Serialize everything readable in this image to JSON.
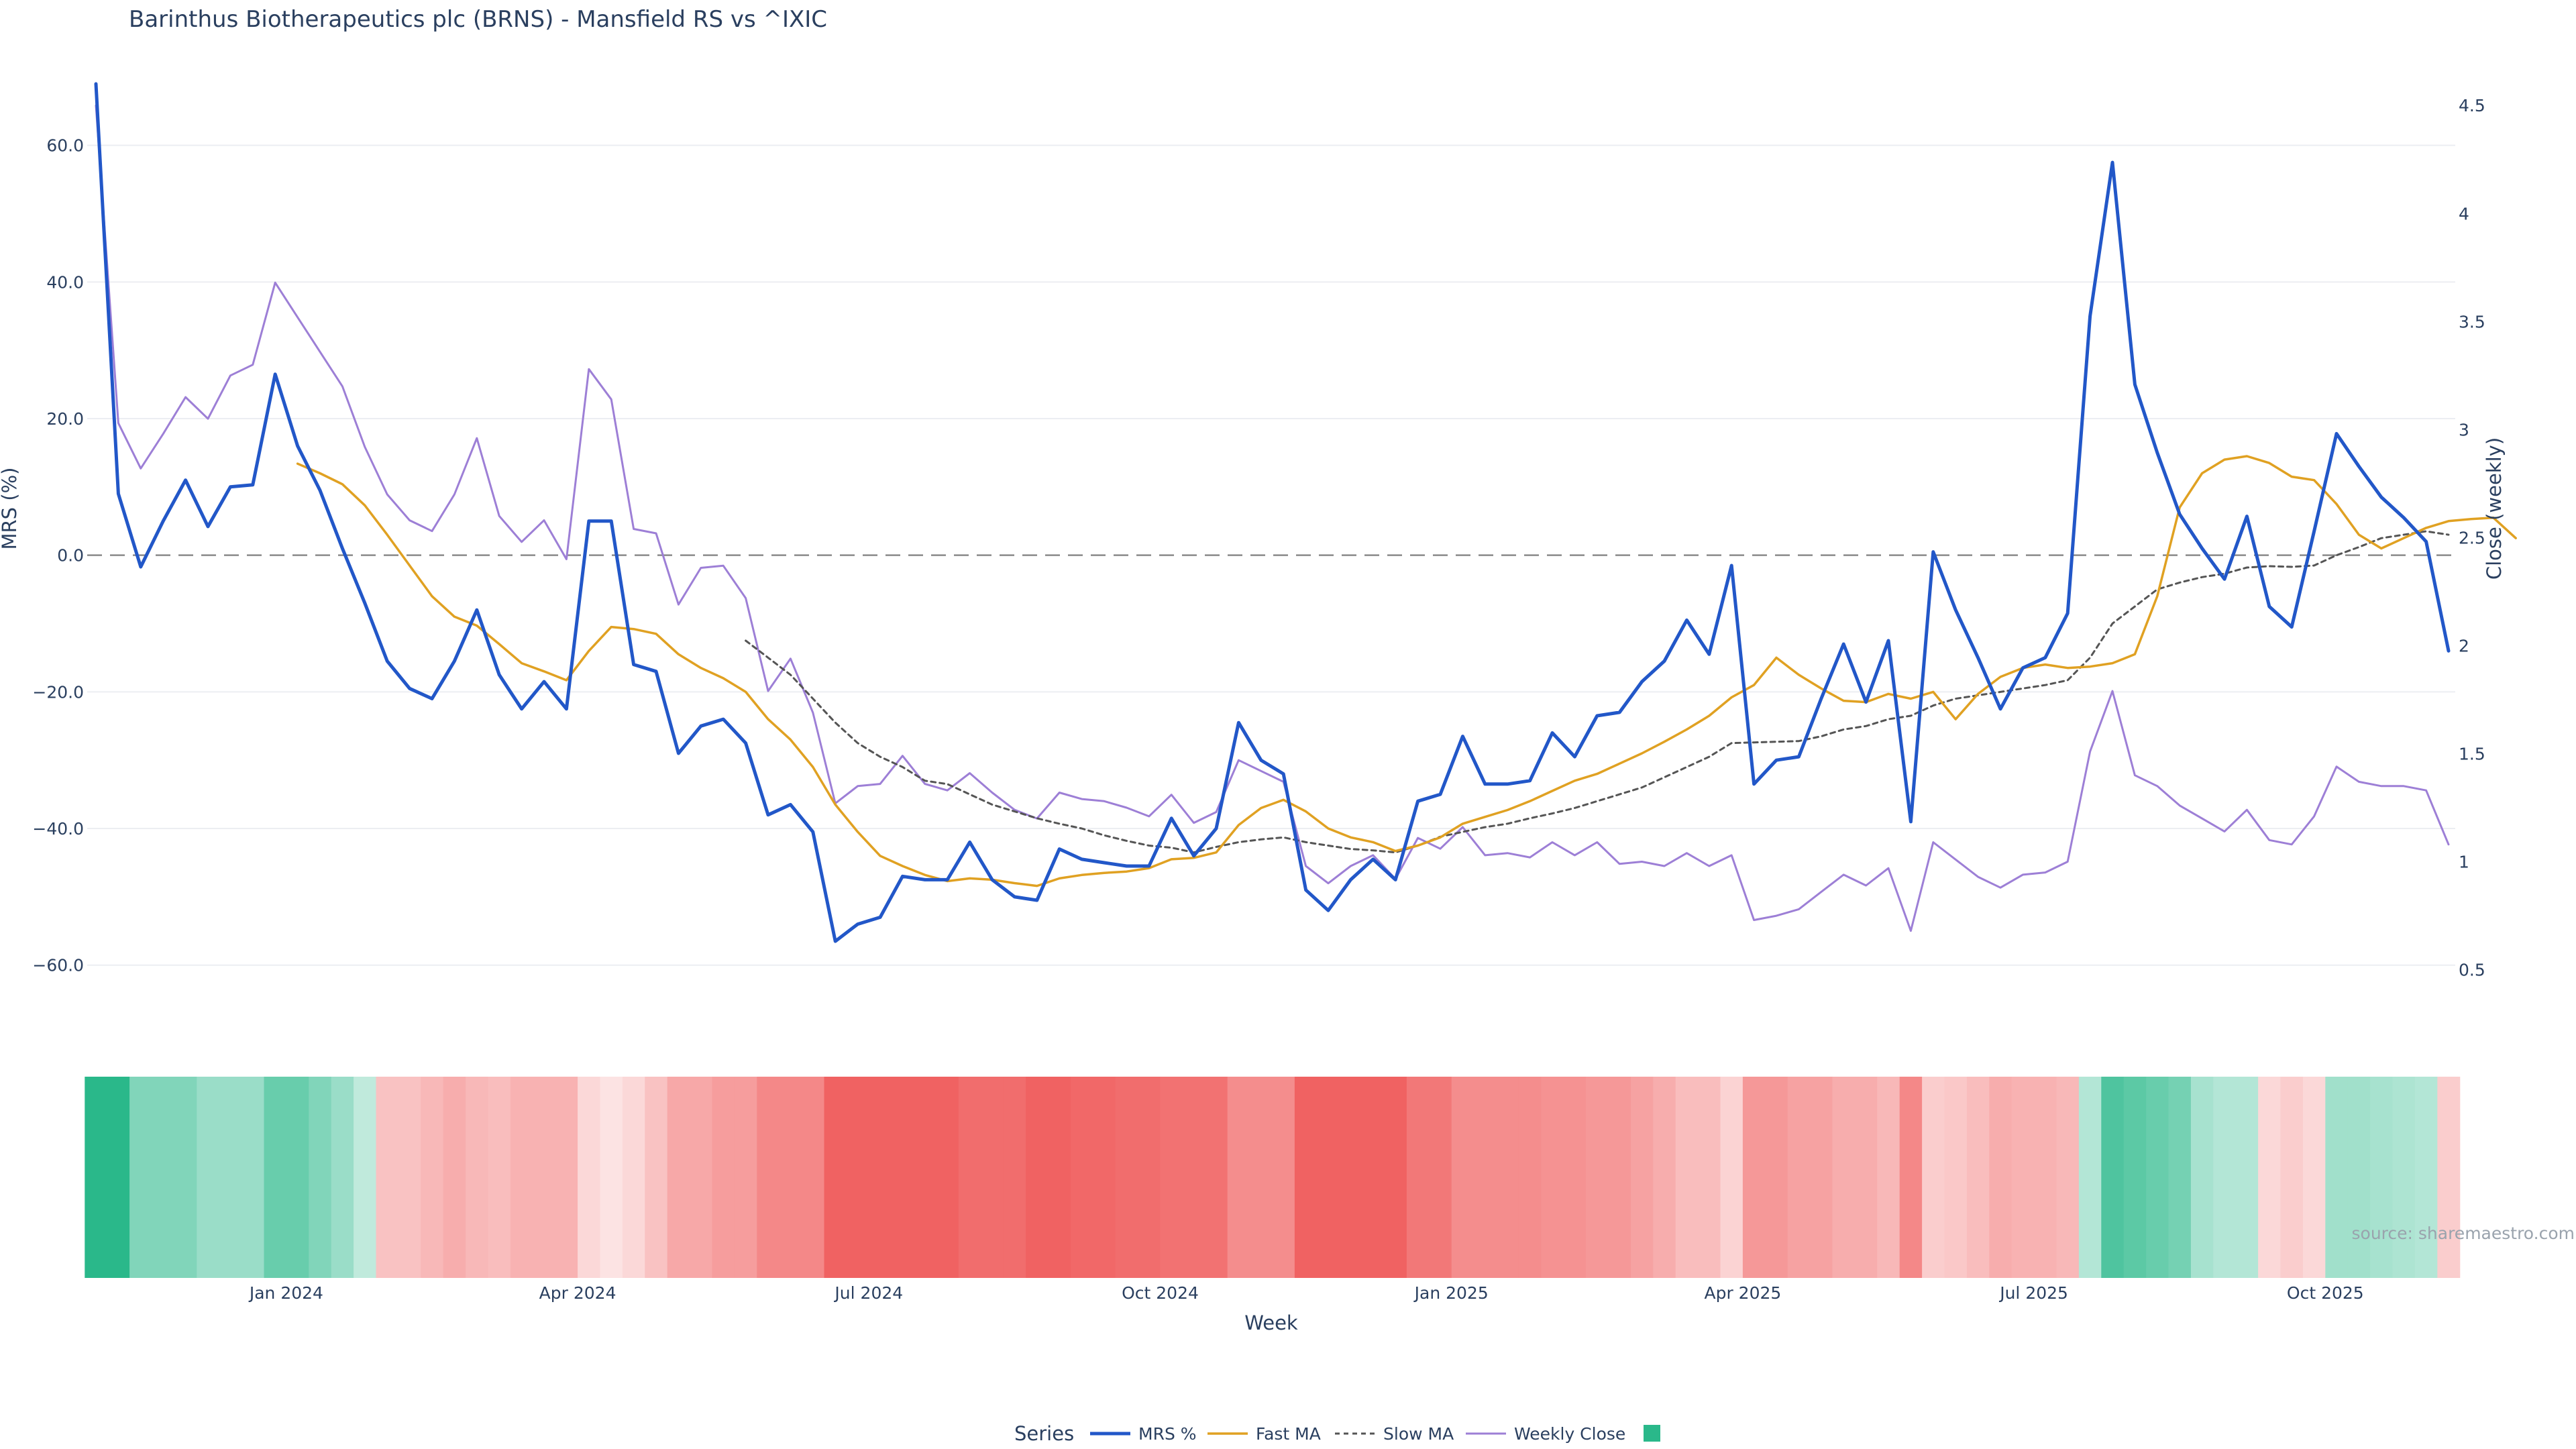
{
  "title": "Barinthus Biotherapeutics plc (BRNS) - Mansfield RS vs ^IXIC",
  "source": "source: sharemaestro.com",
  "colors": {
    "mrs": "#2257c8",
    "fast": "#e0a122",
    "slow": "#555555",
    "close": "#9d7fd6",
    "pos": "#2ab88a",
    "neg": "#ee4d4d",
    "grid": "#eceef2",
    "zero": "#8a8a8a"
  },
  "chart_data": {
    "type": "line",
    "title": "Barinthus Biotherapeutics plc (BRNS) - Mansfield RS vs ^IXIC",
    "xlabel": "Week",
    "ylabel": "MRS (%)",
    "y2label": "Close (weekly)",
    "ylim": [
      -67,
      69
    ],
    "y2lim": [
      0.3,
      4.6
    ],
    "y_ticks": [
      "60.0",
      "40.0",
      "20.0",
      "0.0",
      "−20.0",
      "−40.0",
      "−60.0"
    ],
    "y_tick_values": [
      60,
      40,
      20,
      0,
      -20,
      -40,
      -60
    ],
    "y2_ticks": [
      "4.5",
      "4",
      "3.5",
      "3",
      "2.5",
      "2",
      "1.5",
      "1",
      "0.5"
    ],
    "y2_tick_values": [
      4.5,
      4,
      3.5,
      3,
      2.5,
      2,
      1.5,
      1,
      0.5
    ],
    "x_ticks": [
      "Jan 2024",
      "Apr 2024",
      "Jul 2024",
      "Oct 2024",
      "Jan 2025",
      "Apr 2025",
      "Jul 2025",
      "Oct 2025"
    ],
    "x_tick_values": [
      8.5,
      21.5,
      34.5,
      47.5,
      60.5,
      73.5,
      86.5,
      99.5
    ],
    "grid": true,
    "zero_line": "dashed",
    "legend_title": "Series",
    "legend_position": "bottom-center",
    "series": [
      {
        "name": "MRS %",
        "axis": "y",
        "x_start": 0,
        "values": [
          69,
          9,
          -1.7,
          5,
          11,
          4.2,
          10,
          10.3,
          26.5,
          16,
          9.5,
          1,
          -7,
          -15.5,
          -19.5,
          -21,
          -15.5,
          -8,
          -17.5,
          -22.5,
          -18.5,
          -22.5,
          5,
          5,
          -16,
          -17,
          -29,
          -25,
          -24,
          -27.5,
          -38,
          -36.5,
          -40.5,
          -56.5,
          -54,
          -53,
          -47,
          -47.5,
          -47.5,
          -42,
          -47.5,
          -50,
          -50.5,
          -43,
          -44.5,
          -45,
          -45.5,
          -45.5,
          -38.5,
          -44,
          -40,
          -24.5,
          -30,
          -32,
          -49,
          -52,
          -47.5,
          -44.5,
          -47.5,
          -36,
          -35,
          -26.5,
          -33.5,
          -33.5,
          -33,
          -26,
          -29.5,
          -23.5,
          -23,
          -18.5,
          -15.5,
          -9.5,
          -14.5,
          -1.5,
          -33.5,
          -30,
          -29.5,
          -21,
          -13,
          -21.5,
          -12.5,
          -39,
          0.5,
          -8,
          -15,
          -22.5,
          -16.5,
          -15,
          -8.5,
          35,
          57.5,
          25,
          15,
          6,
          1,
          -3.5,
          5.7,
          -7.5,
          -10.5,
          3.5,
          17.8,
          13,
          8.5,
          5.5,
          2,
          -14
        ]
      },
      {
        "name": "Fast MA",
        "axis": "y",
        "x_start": 9,
        "values": [
          13.4,
          12,
          10.4,
          7.3,
          3,
          -1.5,
          -6,
          -9,
          -10.3,
          -13,
          -15.8,
          -17,
          -18.3,
          -14,
          -10.5,
          -10.8,
          -11.5,
          -14.5,
          -16.5,
          -18,
          -20,
          -24,
          -27,
          -31,
          -36.5,
          -40.5,
          -44,
          -45.5,
          -46.8,
          -47.7,
          -47.3,
          -47.5,
          -48,
          -48.4,
          -47.3,
          -46.8,
          -46.5,
          -46.3,
          -45.8,
          -44.5,
          -44.3,
          -43.5,
          -39.5,
          -37,
          -35.8,
          -37.5,
          -40,
          -41.3,
          -42,
          -43.3,
          -42.5,
          -41.3,
          -39.3,
          -38.3,
          -37.3,
          -36,
          -34.5,
          -33,
          -32,
          -30.5,
          -29,
          -27.3,
          -25.5,
          -23.5,
          -20.8,
          -19,
          -15,
          -17.5,
          -19.5,
          -21.3,
          -21.5,
          -20.3,
          -21,
          -20,
          -24,
          -20.3,
          -17.8,
          -16.5,
          -16,
          -16.5,
          -16.3,
          -15.8,
          -14.5,
          -6,
          7,
          12,
          14,
          14.5,
          13.5,
          11.5,
          11,
          7.5,
          3,
          1,
          2.5,
          4,
          5,
          5.3,
          5.5,
          2.5
        ]
      },
      {
        "name": "Slow MA",
        "axis": "y",
        "x_start": 29,
        "values": [
          -12.5,
          -15,
          -17.5,
          -21,
          -24.5,
          -27.5,
          -29.5,
          -31,
          -33,
          -33.5,
          -35,
          -36.5,
          -37.5,
          -38.5,
          -39.3,
          -40,
          -41,
          -41.8,
          -42.5,
          -42.8,
          -43.5,
          -42.7,
          -42,
          -41.6,
          -41.3,
          -42,
          -42.5,
          -43,
          -43.2,
          -43.5,
          -42.5,
          -41.2,
          -40.5,
          -39.8,
          -39.3,
          -38.5,
          -37.8,
          -37,
          -36,
          -35,
          -34,
          -32.5,
          -31,
          -29.5,
          -27.5,
          -27.4,
          -27.3,
          -27.2,
          -26.5,
          -25.5,
          -25,
          -24,
          -23.5,
          -22,
          -21,
          -20.5,
          -20,
          -19.5,
          -19,
          -18.3,
          -15,
          -10,
          -7.5,
          -5,
          -4,
          -3.2,
          -2.7,
          -1.8,
          -1.6,
          -1.7,
          -1.5,
          0,
          1.2,
          2.5,
          3,
          3.5,
          3
        ]
      },
      {
        "name": "Weekly Close",
        "axis": "y2",
        "x_start": 0,
        "values": [
          4.5,
          3.03,
          2.82,
          2.98,
          3.15,
          3.05,
          3.25,
          3.3,
          3.68,
          3.52,
          3.36,
          3.2,
          2.92,
          2.7,
          2.58,
          2.53,
          2.7,
          2.96,
          2.6,
          2.48,
          2.58,
          2.4,
          3.28,
          3.14,
          2.54,
          2.52,
          2.19,
          2.36,
          2.37,
          2.22,
          1.79,
          1.94,
          1.69,
          1.27,
          1.35,
          1.36,
          1.49,
          1.36,
          1.33,
          1.41,
          1.32,
          1.24,
          1.2,
          1.32,
          1.29,
          1.28,
          1.25,
          1.21,
          1.31,
          1.18,
          1.23,
          1.47,
          1.42,
          1.37,
          0.98,
          0.9,
          0.98,
          1.03,
          0.92,
          1.11,
          1.06,
          1.16,
          1.03,
          1.04,
          1.02,
          1.09,
          1.03,
          1.09,
          0.99,
          1,
          0.98,
          1.04,
          0.98,
          1.03,
          0.73,
          0.75,
          0.78,
          0.86,
          0.94,
          0.89,
          0.97,
          0.68,
          1.09,
          1.01,
          0.93,
          0.88,
          0.94,
          0.95,
          1,
          1.51,
          1.79,
          1.4,
          1.35,
          1.26,
          1.2,
          1.14,
          1.24,
          1.1,
          1.08,
          1.21,
          1.44,
          1.37,
          1.35,
          1.35,
          1.33,
          1.08
        ]
      }
    ],
    "heat_strip": {
      "x_start": 0,
      "values": [
        3,
        3,
        1.6,
        1.6,
        1.6,
        1.2,
        1.2,
        1.2,
        2,
        2,
        1.6,
        1.2,
        0.6,
        -0.8,
        -0.8,
        -1,
        -1.2,
        -1,
        -0.9,
        -1.1,
        -1.1,
        -1.1,
        -0.4,
        -0.2,
        -0.4,
        -0.8,
        -1.3,
        -1.3,
        -1.5,
        -1.5,
        -1.9,
        -1.9,
        -1.9,
        -2.6,
        -2.6,
        -2.6,
        -2.6,
        -2.6,
        -2.6,
        -2.4,
        -2.4,
        -2.4,
        -2.6,
        -2.6,
        -2.5,
        -2.5,
        -2.4,
        -2.4,
        -2.3,
        -2.3,
        -2.3,
        -1.8,
        -1.8,
        -1.8,
        -2.6,
        -2.6,
        -2.6,
        -2.6,
        -2.6,
        -2.2,
        -2.2,
        -1.8,
        -1.8,
        -1.8,
        -1.8,
        -1.7,
        -1.7,
        -1.6,
        -1.6,
        -1.4,
        -1.2,
        -0.9,
        -0.9,
        -0.5,
        -1.6,
        -1.6,
        -1.4,
        -1.4,
        -1.2,
        -1.2,
        -1,
        -1.9,
        -0.6,
        -0.7,
        -0.9,
        -1.2,
        -1.1,
        -1.1,
        -1,
        0.8,
        2.4,
        2.2,
        2,
        1.8,
        1,
        0.8,
        0.8,
        -0.4,
        -0.6,
        -0.4,
        1.1,
        1.1,
        1,
        0.9,
        0.8,
        -0.6
      ]
    },
    "legend_swatch_color": "#2ab88a"
  }
}
